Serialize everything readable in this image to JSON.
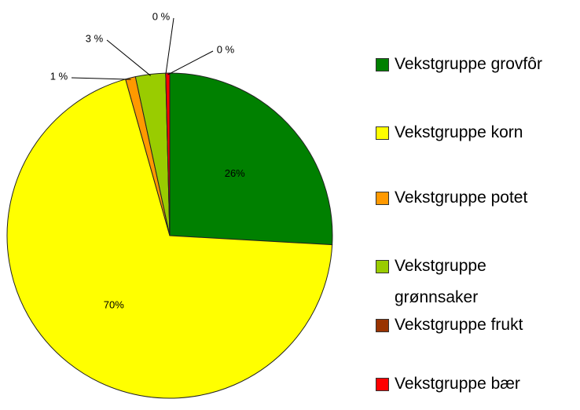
{
  "chart_data": {
    "type": "pie",
    "categories": [
      "Vekstgruppe grovfôr",
      "Vekstgruppe korn",
      "Vekstgruppe potet",
      "Vekstgruppe grønnsaker",
      "Vekstgruppe frukt",
      "Vekstgruppe bær"
    ],
    "values": [
      26,
      70,
      1,
      3,
      0,
      0.4
    ],
    "value_labels": [
      "26%",
      "70%",
      "1 %",
      "3 %",
      "0 %",
      "0 %"
    ],
    "colors": [
      "#008000",
      "#ffff00",
      "#ff9900",
      "#99cc00",
      "#993300",
      "#ff0000"
    ],
    "legend": "right"
  }
}
